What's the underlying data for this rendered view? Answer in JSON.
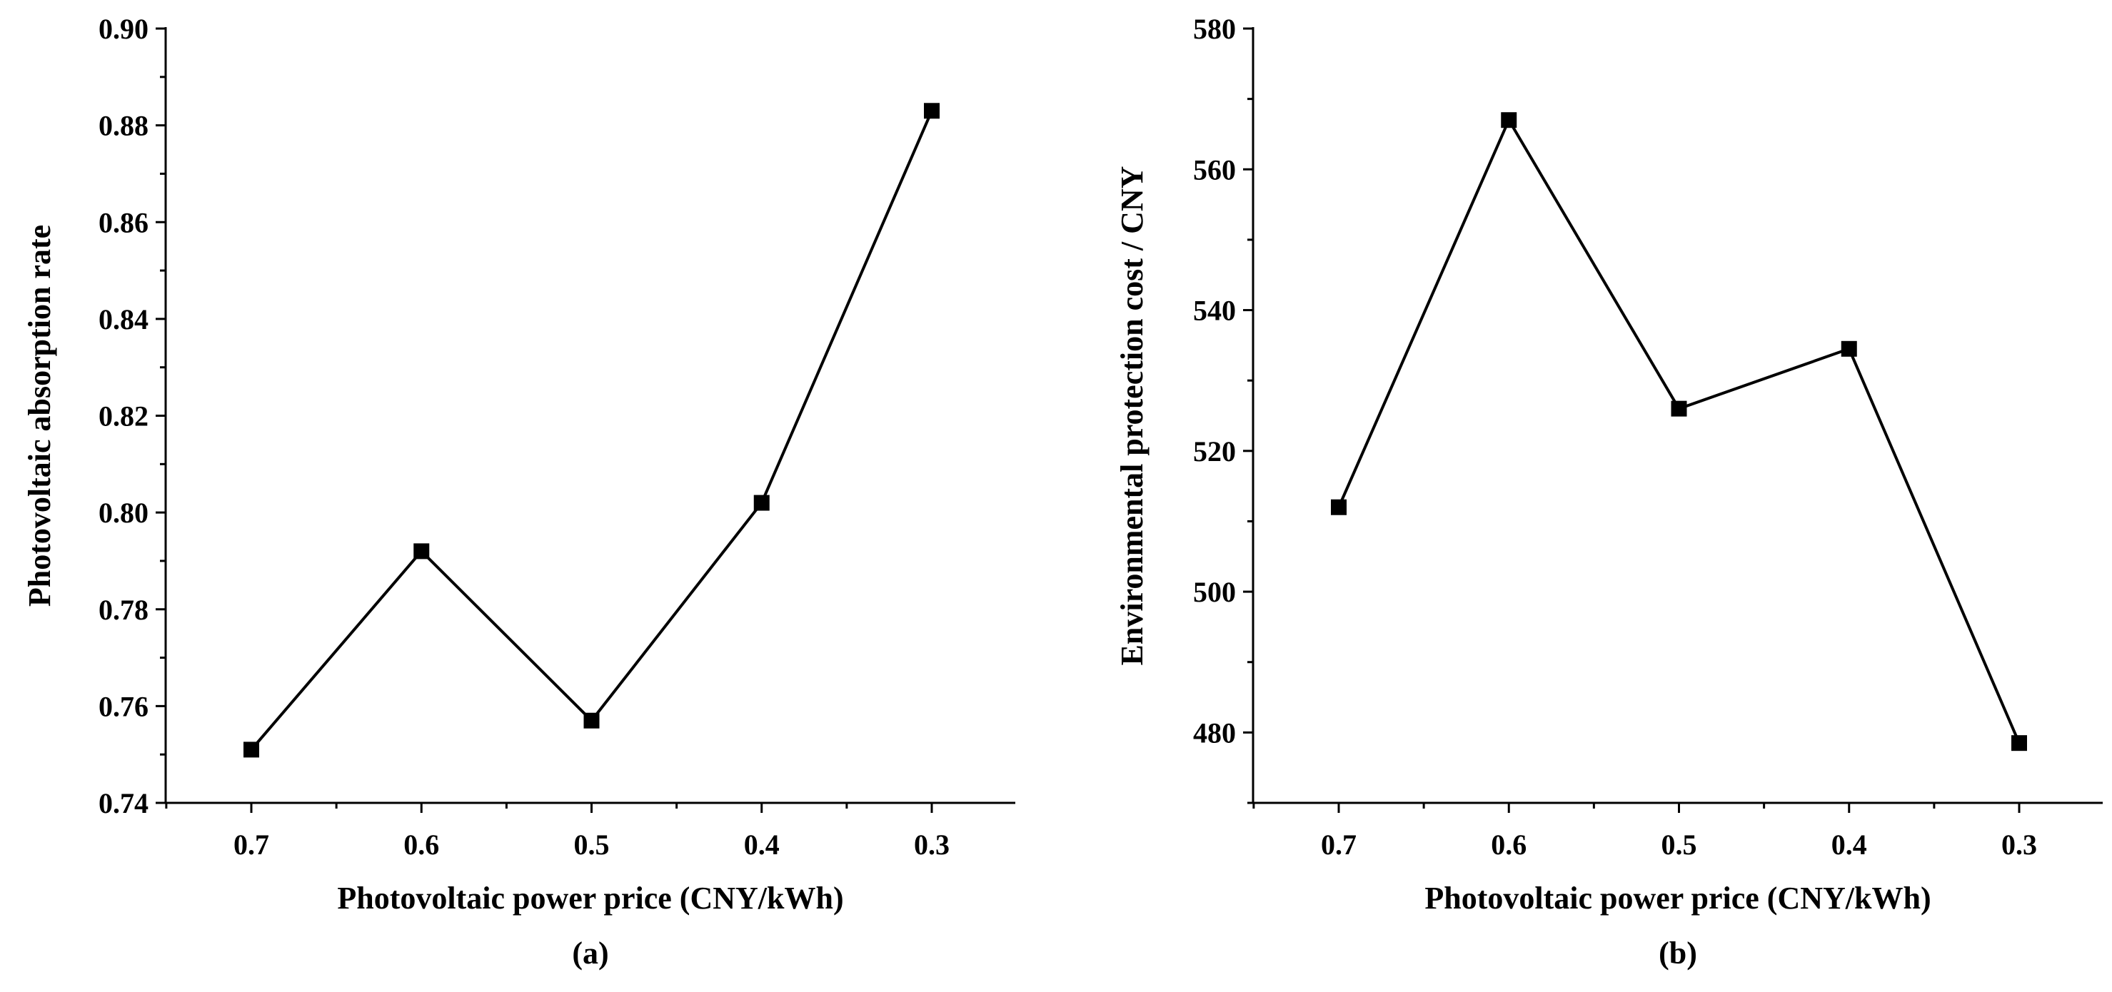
{
  "chart_data": [
    {
      "type": "line",
      "title": "",
      "xlabel": "Photovoltaic power price (CNY/kWh)",
      "ylabel": "Photovoltaic absorption rate",
      "caption": "(a)",
      "categories": [
        "0.7",
        "0.6",
        "0.5",
        "0.4",
        "0.3"
      ],
      "values": [
        0.751,
        0.792,
        0.757,
        0.802,
        0.883
      ],
      "ylim": [
        0.74,
        0.9
      ],
      "yticks": [
        "0.74",
        "0.76",
        "0.78",
        "0.80",
        "0.82",
        "0.84",
        "0.86",
        "0.88",
        "0.90"
      ],
      "marker": "square",
      "grid": false,
      "color": "#000000"
    },
    {
      "type": "line",
      "title": "",
      "xlabel": "Photovoltaic power price (CNY/kWh)",
      "ylabel": "Environmental protection cost / CNY",
      "caption": "(b)",
      "categories": [
        "0.7",
        "0.6",
        "0.5",
        "0.4",
        "0.3"
      ],
      "values": [
        512,
        567,
        526,
        534.5,
        478.5
      ],
      "ylim": [
        470,
        580
      ],
      "yticks": [
        "480",
        "500",
        "520",
        "540",
        "560",
        "580"
      ],
      "marker": "square",
      "grid": false,
      "color": "#000000"
    }
  ]
}
